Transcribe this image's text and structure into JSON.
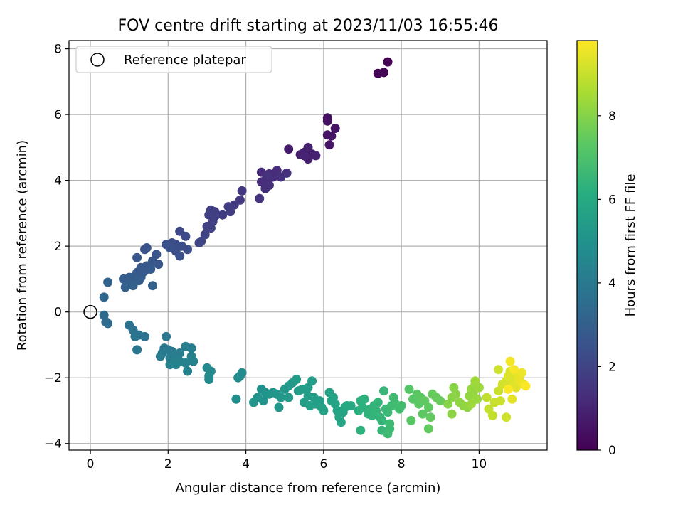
{
  "chart_data": {
    "type": "scatter",
    "title": "FOV centre drift starting at 2023/11/03 16:55:46",
    "xlabel": "Angular distance from reference (arcmin)",
    "ylabel": "Rotation from reference (arcmin)",
    "xlim": [
      -0.55,
      11.75
    ],
    "ylim": [
      -4.2,
      8.25
    ],
    "xticks": [
      0,
      2,
      4,
      6,
      8,
      10
    ],
    "yticks": [
      -4,
      -2,
      0,
      2,
      4,
      6,
      8
    ],
    "grid": true,
    "legend": {
      "placement": "top-left",
      "entries": [
        "Reference platepar"
      ]
    },
    "reference_point": {
      "x": 0,
      "y": 0,
      "label": "Reference platepar"
    },
    "colorbar": {
      "label": "Hours from first FF file",
      "colormap": "viridis",
      "range": [
        0,
        9.8
      ],
      "ticks": [
        0,
        2,
        4,
        6,
        8
      ]
    },
    "series": [
      {
        "points": [
          [
            7.4,
            7.25,
            0.05
          ],
          [
            7.55,
            7.28,
            0.1
          ],
          [
            7.65,
            7.6,
            0.0
          ],
          [
            6.1,
            5.9,
            0.4
          ],
          [
            6.1,
            5.8,
            0.45
          ],
          [
            6.3,
            5.58,
            0.5
          ],
          [
            6.1,
            5.38,
            0.55
          ],
          [
            6.2,
            5.35,
            0.55
          ],
          [
            6.15,
            5.08,
            0.6
          ],
          [
            5.1,
            4.95,
            0.8
          ],
          [
            5.4,
            4.78,
            0.85
          ],
          [
            5.5,
            4.85,
            0.85
          ],
          [
            5.6,
            5.0,
            0.9
          ],
          [
            5.7,
            4.8,
            0.9
          ],
          [
            5.8,
            4.75,
            0.95
          ],
          [
            5.6,
            4.65,
            0.95
          ],
          [
            5.5,
            4.75,
            1.0
          ],
          [
            4.4,
            4.25,
            1.2
          ],
          [
            4.6,
            4.2,
            1.2
          ],
          [
            4.8,
            4.3,
            1.25
          ],
          [
            4.5,
            4.0,
            1.25
          ],
          [
            4.7,
            4.1,
            1.3
          ],
          [
            4.4,
            3.95,
            1.3
          ],
          [
            4.6,
            3.85,
            1.35
          ],
          [
            4.5,
            3.75,
            1.35
          ],
          [
            4.9,
            4.1,
            1.4
          ],
          [
            5.05,
            4.22,
            1.4
          ],
          [
            4.35,
            3.45,
            1.45
          ],
          [
            4.55,
            4.15,
            1.45
          ],
          [
            3.9,
            3.68,
            1.6
          ],
          [
            3.85,
            3.4,
            1.65
          ],
          [
            3.7,
            3.25,
            1.7
          ],
          [
            3.55,
            3.2,
            1.75
          ],
          [
            3.6,
            3.05,
            1.75
          ],
          [
            3.4,
            2.95,
            1.8
          ],
          [
            3.2,
            3.05,
            1.8
          ],
          [
            3.1,
            3.1,
            1.85
          ],
          [
            3.2,
            2.9,
            1.85
          ],
          [
            3.05,
            2.95,
            1.9
          ],
          [
            3.15,
            2.75,
            1.9
          ],
          [
            3.0,
            2.6,
            1.95
          ],
          [
            3.1,
            2.55,
            1.95
          ],
          [
            2.95,
            2.35,
            2.0
          ],
          [
            2.85,
            2.15,
            2.05
          ],
          [
            2.8,
            2.1,
            2.05
          ],
          [
            2.3,
            2.45,
            2.2
          ],
          [
            2.45,
            2.3,
            2.25
          ],
          [
            2.1,
            2.1,
            2.3
          ],
          [
            2.2,
            2.05,
            2.3
          ],
          [
            2.35,
            2.0,
            2.35
          ],
          [
            2.5,
            1.9,
            2.35
          ],
          [
            2.2,
            1.85,
            2.4
          ],
          [
            2.3,
            1.7,
            2.45
          ],
          [
            1.95,
            2.05,
            2.45
          ],
          [
            2.05,
            1.95,
            2.5
          ],
          [
            1.4,
            1.9,
            2.55
          ],
          [
            1.45,
            1.95,
            2.55
          ],
          [
            1.7,
            1.75,
            2.6
          ],
          [
            1.6,
            1.55,
            2.6
          ],
          [
            1.75,
            1.45,
            2.65
          ],
          [
            1.2,
            1.65,
            2.65
          ],
          [
            1.3,
            1.35,
            2.7
          ],
          [
            1.45,
            1.4,
            2.7
          ],
          [
            1.4,
            1.25,
            2.75
          ],
          [
            1.35,
            1.2,
            2.75
          ],
          [
            1.55,
            1.3,
            2.8
          ],
          [
            1.2,
            1.2,
            2.8
          ],
          [
            1.15,
            1.1,
            2.85
          ],
          [
            1.3,
            1.05,
            2.85
          ],
          [
            1.1,
            1.0,
            2.9
          ],
          [
            1.0,
            1.05,
            2.9
          ],
          [
            0.85,
            1.0,
            2.95
          ],
          [
            0.95,
            0.9,
            2.95
          ],
          [
            1.25,
            0.95,
            3.0
          ],
          [
            1.05,
            0.85,
            3.0
          ],
          [
            0.9,
            0.75,
            3.05
          ],
          [
            1.1,
            0.8,
            3.05
          ],
          [
            1.6,
            0.8,
            3.1
          ],
          [
            0.45,
            0.9,
            3.15
          ],
          [
            0.35,
            0.45,
            3.25
          ],
          [
            0.35,
            -0.1,
            3.4
          ],
          [
            0.4,
            -0.3,
            3.45
          ],
          [
            0.45,
            -0.35,
            3.45
          ],
          [
            1.0,
            -0.4,
            3.65
          ],
          [
            1.1,
            -0.55,
            3.7
          ],
          [
            1.25,
            -0.7,
            3.75
          ],
          [
            1.4,
            -0.75,
            3.75
          ],
          [
            1.15,
            -0.75,
            3.8
          ],
          [
            1.2,
            -1.15,
            3.85
          ],
          [
            1.95,
            -0.75,
            3.9
          ],
          [
            1.9,
            -1.1,
            4.0
          ],
          [
            2.0,
            -1.15,
            4.0
          ],
          [
            1.85,
            -1.25,
            4.05
          ],
          [
            2.1,
            -1.2,
            4.05
          ],
          [
            1.8,
            -1.35,
            4.1
          ],
          [
            2.05,
            -1.4,
            4.1
          ],
          [
            2.2,
            -1.3,
            4.15
          ],
          [
            2.3,
            -1.25,
            4.15
          ],
          [
            2.45,
            -1.05,
            4.2
          ],
          [
            2.6,
            -1.1,
            4.2
          ],
          [
            2.15,
            -1.5,
            4.25
          ],
          [
            2.05,
            -1.6,
            4.25
          ],
          [
            2.3,
            -1.5,
            4.3
          ],
          [
            2.6,
            -1.35,
            4.3
          ],
          [
            2.65,
            -1.5,
            4.35
          ],
          [
            2.45,
            -1.55,
            4.35
          ],
          [
            2.5,
            -1.8,
            4.4
          ],
          [
            2.2,
            -1.6,
            4.4
          ],
          [
            3.0,
            -1.7,
            4.6
          ],
          [
            3.1,
            -1.8,
            4.6
          ],
          [
            3.05,
            -1.95,
            4.65
          ],
          [
            3.05,
            -2.05,
            4.65
          ],
          [
            3.8,
            -2.0,
            4.7
          ],
          [
            3.9,
            -1.85,
            4.7
          ],
          [
            3.85,
            -1.95,
            4.75
          ],
          [
            3.75,
            -2.65,
            4.8
          ],
          [
            4.4,
            -2.35,
            5.0
          ],
          [
            4.5,
            -2.45,
            5.0
          ],
          [
            4.3,
            -2.6,
            5.05
          ],
          [
            4.45,
            -2.7,
            5.05
          ],
          [
            4.2,
            -2.75,
            5.1
          ],
          [
            4.6,
            -2.5,
            5.1
          ],
          [
            4.7,
            -2.45,
            5.15
          ],
          [
            4.8,
            -2.5,
            5.15
          ],
          [
            4.9,
            -2.6,
            5.2
          ],
          [
            4.85,
            -2.9,
            5.2
          ],
          [
            5.0,
            -2.35,
            5.25
          ],
          [
            5.1,
            -2.25,
            5.25
          ],
          [
            5.2,
            -2.15,
            5.3
          ],
          [
            5.1,
            -2.6,
            5.3
          ],
          [
            5.3,
            -2.05,
            5.35
          ],
          [
            5.35,
            -2.4,
            5.35
          ],
          [
            5.45,
            -2.35,
            5.4
          ],
          [
            5.5,
            -2.75,
            5.4
          ],
          [
            5.6,
            -2.3,
            5.45
          ],
          [
            5.7,
            -2.1,
            5.45
          ],
          [
            5.6,
            -2.55,
            5.5
          ],
          [
            5.75,
            -2.6,
            5.5
          ],
          [
            5.8,
            -2.8,
            5.55
          ],
          [
            5.9,
            -2.7,
            5.55
          ],
          [
            5.65,
            -2.85,
            5.6
          ],
          [
            5.95,
            -2.9,
            5.6
          ],
          [
            6.0,
            -3.0,
            5.65
          ],
          [
            6.15,
            -2.45,
            5.65
          ],
          [
            6.2,
            -2.7,
            5.7
          ],
          [
            6.3,
            -2.8,
            5.7
          ],
          [
            6.25,
            -2.6,
            5.75
          ],
          [
            6.35,
            -3.0,
            5.75
          ],
          [
            6.4,
            -3.2,
            5.8
          ],
          [
            6.5,
            -3.05,
            5.8
          ],
          [
            6.55,
            -2.9,
            5.85
          ],
          [
            6.45,
            -3.35,
            5.85
          ],
          [
            6.6,
            -2.85,
            5.9
          ],
          [
            6.7,
            -2.85,
            5.9
          ],
          [
            6.9,
            -3.0,
            6.2
          ],
          [
            7.0,
            -2.9,
            6.25
          ],
          [
            6.95,
            -2.7,
            6.25
          ],
          [
            7.05,
            -2.65,
            6.3
          ],
          [
            6.95,
            -3.6,
            6.3
          ],
          [
            7.15,
            -3.1,
            6.35
          ],
          [
            7.2,
            -2.95,
            6.35
          ],
          [
            7.25,
            -3.15,
            6.4
          ],
          [
            7.3,
            -2.85,
            6.4
          ],
          [
            7.35,
            -3.0,
            6.45
          ],
          [
            7.4,
            -2.75,
            6.45
          ],
          [
            7.45,
            -3.2,
            6.5
          ],
          [
            7.5,
            -3.3,
            6.5
          ],
          [
            7.5,
            -3.6,
            6.55
          ],
          [
            7.55,
            -2.4,
            6.55
          ],
          [
            7.6,
            -2.95,
            6.6
          ],
          [
            7.65,
            -3.05,
            6.6
          ],
          [
            7.7,
            -3.4,
            6.65
          ],
          [
            7.7,
            -3.55,
            6.65
          ],
          [
            7.65,
            -3.7,
            6.7
          ],
          [
            7.75,
            -2.85,
            6.7
          ],
          [
            7.8,
            -2.6,
            6.75
          ],
          [
            7.85,
            -2.8,
            6.75
          ],
          [
            7.95,
            -2.95,
            6.8
          ],
          [
            8.0,
            -2.85,
            6.8
          ],
          [
            8.2,
            -2.35,
            7.2
          ],
          [
            8.3,
            -2.65,
            7.25
          ],
          [
            8.25,
            -3.3,
            7.25
          ],
          [
            8.4,
            -2.5,
            7.3
          ],
          [
            8.5,
            -2.6,
            7.3
          ],
          [
            8.45,
            -2.8,
            7.35
          ],
          [
            8.55,
            -3.1,
            7.35
          ],
          [
            8.6,
            -2.7,
            7.4
          ],
          [
            8.7,
            -2.9,
            7.4
          ],
          [
            8.75,
            -3.2,
            7.45
          ],
          [
            8.7,
            -3.55,
            7.45
          ],
          [
            8.8,
            -2.5,
            7.5
          ],
          [
            8.9,
            -2.6,
            7.5
          ],
          [
            9.0,
            -2.7,
            7.55
          ],
          [
            9.2,
            -2.8,
            8.0
          ],
          [
            9.3,
            -2.6,
            8.05
          ],
          [
            9.35,
            -2.3,
            8.05
          ],
          [
            9.4,
            -2.5,
            8.1
          ],
          [
            9.3,
            -3.1,
            8.1
          ],
          [
            9.5,
            -2.75,
            8.15
          ],
          [
            9.6,
            -2.85,
            8.15
          ],
          [
            9.7,
            -2.9,
            8.2
          ],
          [
            9.75,
            -2.55,
            8.2
          ],
          [
            9.8,
            -2.35,
            8.25
          ],
          [
            9.85,
            -2.45,
            8.25
          ],
          [
            9.9,
            -2.2,
            8.3
          ],
          [
            9.95,
            -2.65,
            8.3
          ],
          [
            9.8,
            -2.8,
            8.35
          ],
          [
            10.0,
            -2.3,
            8.35
          ],
          [
            9.9,
            -2.1,
            8.4
          ],
          [
            10.2,
            -2.6,
            8.9
          ],
          [
            10.25,
            -2.95,
            8.95
          ],
          [
            10.35,
            -3.15,
            8.95
          ],
          [
            10.4,
            -2.75,
            9.0
          ],
          [
            10.5,
            -2.4,
            9.05
          ],
          [
            10.55,
            -2.7,
            9.05
          ],
          [
            10.5,
            -1.75,
            9.1
          ],
          [
            10.7,
            -3.2,
            9.1
          ],
          [
            10.6,
            -2.2,
            9.15
          ],
          [
            10.7,
            -2.1,
            9.2
          ],
          [
            10.8,
            -1.8,
            9.25
          ],
          [
            10.75,
            -1.95,
            9.3
          ],
          [
            10.85,
            -2.05,
            9.3
          ],
          [
            10.9,
            -2.2,
            9.35
          ],
          [
            10.95,
            -2.3,
            9.4
          ],
          [
            10.85,
            -2.65,
            9.4
          ],
          [
            11.0,
            -1.95,
            9.45
          ],
          [
            11.05,
            -2.1,
            9.5
          ],
          [
            11.1,
            -1.85,
            9.55
          ],
          [
            11.15,
            -2.2,
            9.6
          ],
          [
            10.8,
            -1.5,
            9.65
          ],
          [
            10.9,
            -1.75,
            9.7
          ],
          [
            11.2,
            -2.25,
            9.75
          ],
          [
            10.75,
            -2.35,
            9.75
          ]
        ]
      }
    ]
  }
}
